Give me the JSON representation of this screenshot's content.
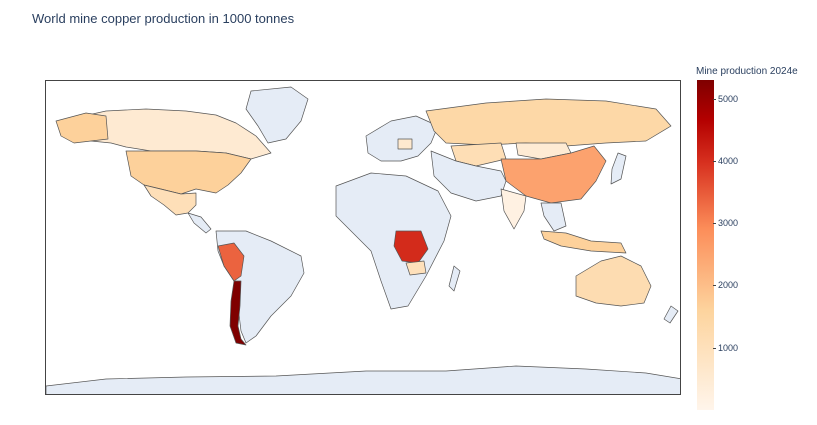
{
  "title": "World mine copper production in 1000 tonnes",
  "colorbar": {
    "title": "Mine production 2024e",
    "ticks": [
      {
        "label": "1000",
        "value": 1000
      },
      {
        "label": "2000",
        "value": 2000
      },
      {
        "label": "3000",
        "value": 3000
      },
      {
        "label": "4000",
        "value": 4000
      },
      {
        "label": "5000",
        "value": 5000
      }
    ],
    "min": 0,
    "max": 5300,
    "colorscale": [
      "#fff5eb",
      "#fdd49e",
      "#fc8d59",
      "#d7301f",
      "#b30000",
      "#7f0000"
    ]
  },
  "chart_data": {
    "type": "choropleth",
    "projection": "equirectangular",
    "value_label": "Mine production 2024e",
    "no_data_color": "#e5ecf6",
    "countries": [
      {
        "name": "Chile",
        "value": 5300
      },
      {
        "name": "Democratic Republic of the Congo",
        "value": 3300
      },
      {
        "name": "Peru",
        "value": 2600
      },
      {
        "name": "China",
        "value": 1800
      },
      {
        "name": "Indonesia",
        "value": 1100
      },
      {
        "name": "United States",
        "value": 1100
      },
      {
        "name": "Russia",
        "value": 930
      },
      {
        "name": "Australia",
        "value": 800
      },
      {
        "name": "Kazakhstan",
        "value": 740
      },
      {
        "name": "Mexico",
        "value": 700
      },
      {
        "name": "Zambia",
        "value": 680
      },
      {
        "name": "Poland",
        "value": 390
      },
      {
        "name": "Canada",
        "value": 340
      },
      {
        "name": "Mongolia",
        "value": 320
      },
      {
        "name": "India",
        "value": 120
      }
    ]
  }
}
